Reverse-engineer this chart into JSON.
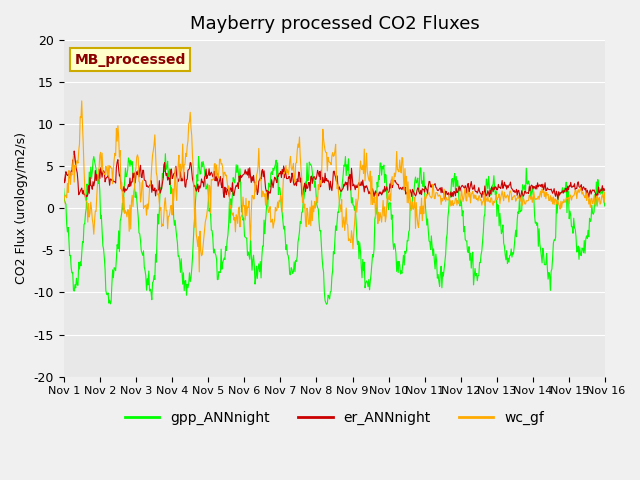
{
  "title": "Mayberry processed CO2 Fluxes",
  "ylabel": "CO2 Flux (urology/m2/s)",
  "ylim": [
    -20,
    20
  ],
  "yticks": [
    -20,
    -15,
    -10,
    -5,
    0,
    5,
    10,
    15,
    20
  ],
  "xtick_labels": [
    "Nov 1",
    "Nov 2",
    "Nov 3",
    "Nov 4",
    "Nov 5",
    "Nov 6",
    "Nov 7",
    "Nov 8",
    "Nov 9",
    "Nov 10",
    "Nov 11",
    "Nov 12",
    "Nov 13",
    "Nov 14",
    "Nov 15",
    "Nov 16"
  ],
  "series_colors": [
    "#00ff00",
    "#cc0000",
    "#ffaa00"
  ],
  "series_labels": [
    "gpp_ANNnight",
    "er_ANNnight",
    "wc_gf"
  ],
  "legend_label": "MB_processed",
  "axes_background": "#e8e8e8",
  "n_days": 15,
  "points_per_day": 48,
  "random_seed": 42
}
